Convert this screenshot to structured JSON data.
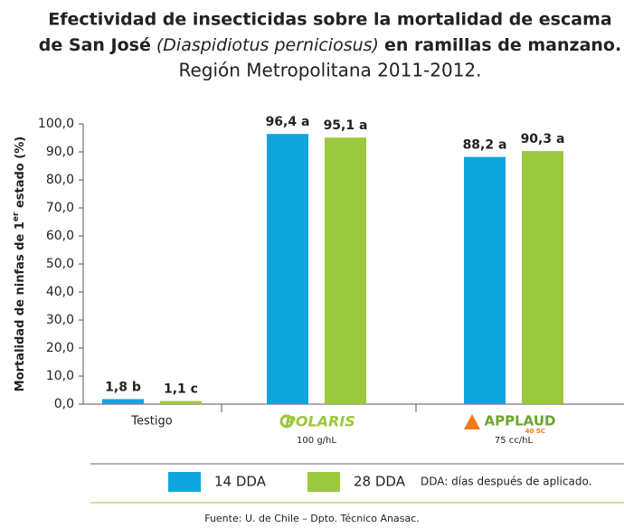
{
  "chart_data": {
    "type": "bar",
    "title": [
      "Efectividad de insecticidas sobre la mortalidad de escama",
      "de San José",
      "(Diaspidiotus perniciosus)",
      "en ramillas de manzano."
    ],
    "subtitle": "Región Metropolitana 2011-2012.",
    "ylabel": [
      "Mortalidad de ninfas de 1",
      "er",
      " estado (%)"
    ],
    "categories": [
      "Testigo",
      "POLARIS",
      "APPLAUD"
    ],
    "category_sublabels": [
      null,
      "100 g/hL",
      "75 cc/hL"
    ],
    "applaud_badge": "40 SC",
    "series": [
      {
        "name": "14 DDA",
        "color": "#0fa6df",
        "values": [
          1.8,
          96.4,
          88.2
        ],
        "value_labels": [
          "1,8 b",
          "96,4 a",
          "88,2 a"
        ]
      },
      {
        "name": "28 DDA",
        "color": "#9bc83c",
        "values": [
          1.1,
          95.1,
          90.3
        ],
        "value_labels": [
          "1,1 c",
          "95,1 a",
          "90,3 a"
        ]
      }
    ],
    "ylim": [
      0,
      100
    ],
    "yticks": [
      {
        "value": 0,
        "label": "0,0"
      },
      {
        "value": 10,
        "label": "10,0"
      },
      {
        "value": 20,
        "label": "20,0"
      },
      {
        "value": 30,
        "label": "30,0"
      },
      {
        "value": 40,
        "label": "40,0"
      },
      {
        "value": 50,
        "label": "50,0"
      },
      {
        "value": 60,
        "label": "60,0"
      },
      {
        "value": 70,
        "label": "70,0"
      },
      {
        "value": 80,
        "label": "80,0"
      },
      {
        "value": 90,
        "label": "90,0"
      },
      {
        "value": 100,
        "label": "100,0"
      }
    ],
    "legend_note": "DDA: días después de aplicado.",
    "source": "Fuente: U. de Chile – Dpto. Técnico Anasac."
  }
}
